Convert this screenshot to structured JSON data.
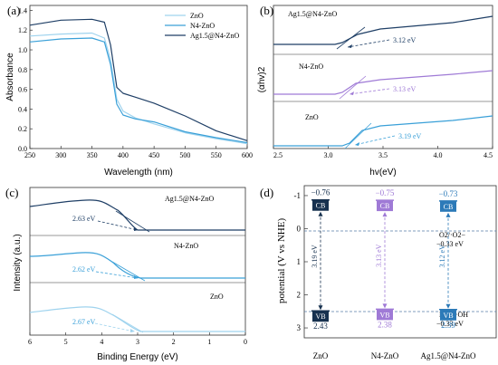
{
  "colors": {
    "zno": "#9fd3ee",
    "n4": "#3aa0d8",
    "ag": "#1f3f66",
    "purple": "#9f7ad6",
    "cb_dark": "#17314f",
    "cb_mid": "#2c7ab8",
    "dash": "#5a7fa8"
  },
  "panel_a": {
    "label": "(a)",
    "xlabel": "Wavelength (nm)",
    "ylabel": "Absorbance",
    "xticks": [
      "250",
      "300",
      "350",
      "400",
      "450",
      "500",
      "550",
      "600"
    ],
    "yticks": [
      "0.0",
      "0.2",
      "0.4",
      "0.6",
      "0.8",
      "1.0",
      "1.2",
      "1.4"
    ],
    "legend": [
      "ZnO",
      "N4-ZnO",
      "Ag1.5@N4-ZnO"
    ]
  },
  "panel_b": {
    "label": "(b)",
    "xlabel": "hv(eV)",
    "ylabel": "(αhv)2",
    "xticks": [
      "2.5",
      "3.0",
      "3.5",
      "4.0",
      "4.5"
    ],
    "curves": [
      {
        "name": "Ag1.5@N4-ZnO",
        "gap": "3.12 eV"
      },
      {
        "name": "N4-ZnO",
        "gap": "3.13 eV"
      },
      {
        "name": "ZnO",
        "gap": "3.19 eV"
      }
    ]
  },
  "panel_c": {
    "label": "(c)",
    "xlabel": "Binding Energy (eV)",
    "ylabel": "Intensity (a.u.)",
    "xticks": [
      "6",
      "5",
      "4",
      "3",
      "2",
      "1",
      "0"
    ],
    "curves": [
      {
        "name": "Ag1.5@N4-ZnO",
        "vb": "2.63 eV"
      },
      {
        "name": "N4-ZnO",
        "vb": "2.62 eV"
      },
      {
        "name": "ZnO",
        "vb": "2.67 eV"
      }
    ]
  },
  "panel_d": {
    "label": "(d)",
    "ylabel": "potential (V vs NHE)",
    "yticks": [
      "-1",
      "0",
      "1",
      "2",
      "3"
    ],
    "cb_label": "CB",
    "vb_label": "VB",
    "o2_label": "O2/·O2−",
    "o2_value": "−0.33 eV",
    "h2o_label": "H2O/·OH",
    "h2o_value": "−0.33 eV",
    "samples": [
      {
        "name": "ZnO",
        "cb": "−0.76",
        "vb": "2.43",
        "gap": "3.19 eV"
      },
      {
        "name": "N4-ZnO",
        "cb": "−0.75",
        "vb": "2.38",
        "gap": "3.13 eV"
      },
      {
        "name": "Ag1.5@N4-ZnO",
        "cb": "−0.73",
        "vb": "2.39",
        "gap": "3.12 eV"
      }
    ]
  },
  "chart_data": [
    {
      "type": "line",
      "title": "",
      "xlabel": "Wavelength (nm)",
      "ylabel": "Absorbance",
      "xlim": [
        250,
        600
      ],
      "ylim": [
        0.0,
        1.45
      ],
      "x": [
        250,
        300,
        350,
        370,
        380,
        390,
        400,
        420,
        450,
        500,
        550,
        600
      ],
      "series": [
        {
          "name": "ZnO",
          "values": [
            1.14,
            1.16,
            1.17,
            1.12,
            0.9,
            0.5,
            0.38,
            0.31,
            0.25,
            0.16,
            0.1,
            0.05
          ]
        },
        {
          "name": "N4-ZnO",
          "values": [
            1.08,
            1.11,
            1.12,
            1.08,
            0.85,
            0.45,
            0.34,
            0.3,
            0.27,
            0.17,
            0.11,
            0.06
          ]
        },
        {
          "name": "Ag1.5@N4-ZnO",
          "values": [
            1.25,
            1.3,
            1.31,
            1.28,
            1.05,
            0.62,
            0.56,
            0.52,
            0.46,
            0.33,
            0.18,
            0.08
          ]
        }
      ]
    },
    {
      "type": "line",
      "title": "",
      "xlabel": "hv(eV)",
      "ylabel": "(αhv)2",
      "xlim": [
        2.5,
        4.5
      ],
      "series": [
        {
          "name": "Ag1.5@N4-ZnO",
          "band_gap_eV": 3.12
        },
        {
          "name": "N4-ZnO",
          "band_gap_eV": 3.13
        },
        {
          "name": "ZnO",
          "band_gap_eV": 3.19
        }
      ]
    },
    {
      "type": "line",
      "title": "",
      "xlabel": "Binding Energy (eV)",
      "ylabel": "Intensity (a.u.)",
      "xlim": [
        6,
        0
      ],
      "series": [
        {
          "name": "Ag1.5@N4-ZnO",
          "vb_edge_eV": 2.63
        },
        {
          "name": "N4-ZnO",
          "vb_edge_eV": 2.62
        },
        {
          "name": "ZnO",
          "vb_edge_eV": 2.67
        }
      ]
    },
    {
      "type": "diagram",
      "title": "",
      "ylabel": "potential (V vs NHE)",
      "ylim": [
        3.3,
        -1.3
      ],
      "categories": [
        "ZnO",
        "N4-ZnO",
        "Ag1.5@N4-ZnO"
      ],
      "series": [
        {
          "name": "CB",
          "values": [
            -0.76,
            -0.75,
            -0.73
          ]
        },
        {
          "name": "VB",
          "values": [
            2.43,
            2.38,
            2.39
          ]
        }
      ]
    }
  ]
}
